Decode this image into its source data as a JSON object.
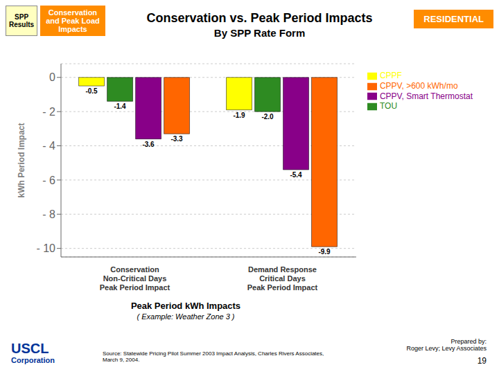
{
  "chart_data": {
    "type": "bar",
    "title": "Conservation vs. Peak Period Impacts",
    "subtitle": "By SPP Rate Form",
    "xlabel": "Peak Period kWh Impacts",
    "ylabel": "kWh Period Impact",
    "annotations": [
      "SPP\nResults",
      "Conservation\nand Peak Load\nImpacts",
      "RESIDENTIAL",
      "( Example: Weather Zone 3 )",
      "USCL",
      "Corporation",
      "Source:   Statewide Pricing Pilot Summer 2003 Impact Analysis, Charles Rivers Associates, March 9, 2004.",
      "Prepared by:\nRoger Levy; Levy Associates",
      "19"
    ],
    "categories": [
      "Conservation\nNon-Critical Days\nPeak Period Impact",
      "Demand Response\nCritical Days\nPeak Period Impact"
    ],
    "series": [
      {
        "name": "CPPF",
        "color": "#FFFF00",
        "values": [
          -0.5,
          -1.9
        ],
        "value_labels": [
          "-0.5",
          "-1.9"
        ]
      },
      {
        "name": "TOU",
        "color": "#2E8B22",
        "values": [
          -1.4,
          -2.0
        ],
        "value_labels": [
          "-1.4",
          "-2.0"
        ]
      },
      {
        "name": "CPPV, Smart Thermostat",
        "color": "#880088",
        "values": [
          -3.6,
          -5.4
        ],
        "value_labels": [
          "-3.6",
          "-5.4"
        ]
      },
      {
        "name": "CPPV, >600 kWh/mo",
        "color": "#FF6600",
        "values": [
          -3.3,
          -9.9
        ],
        "value_labels": [
          "-3.3",
          "-9.9"
        ]
      }
    ],
    "ylim": [
      -10.5,
      0.8
    ],
    "yticks": [
      0,
      {
        "value": -2,
        "label": "- 2"
      },
      {
        "value": -4,
        "label": "- 4"
      },
      {
        "value": -6,
        "label": "- 6"
      },
      {
        "value": -8,
        "label": "- 8"
      },
      {
        "value": -10,
        "label": "- 10"
      }
    ],
    "grid": true,
    "legend": "right",
    "data_labels": true
  }
}
